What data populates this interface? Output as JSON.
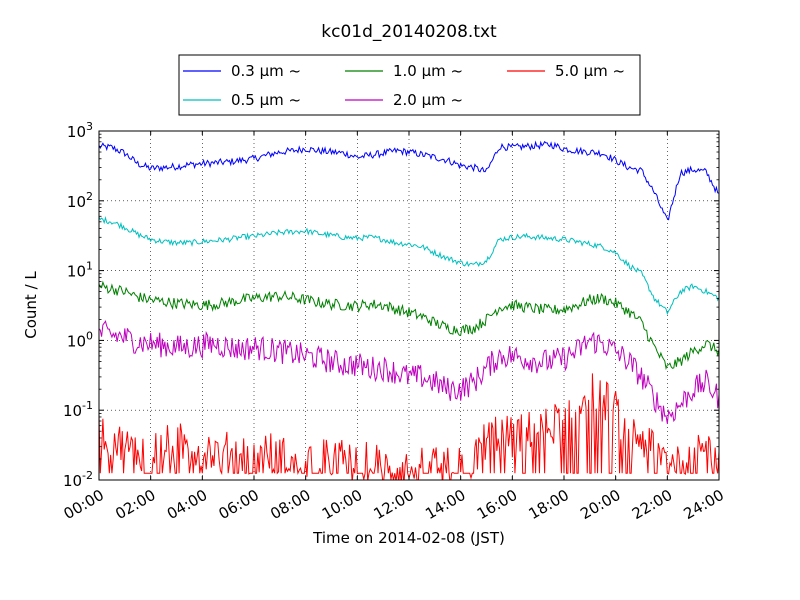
{
  "chart_data": {
    "type": "line",
    "title": "kc01d_20140208.txt",
    "xlabel": "Time on 2014-02-08 (JST)",
    "ylabel": "Count / L",
    "xlim": [
      "00:00",
      "24:00"
    ],
    "ylim": [
      0.01,
      1000
    ],
    "yscale": "log",
    "grid": true,
    "legend_position": "top-center",
    "x_ticks": [
      "00:00",
      "02:00",
      "04:00",
      "06:00",
      "08:00",
      "10:00",
      "12:00",
      "14:00",
      "16:00",
      "18:00",
      "20:00",
      "22:00",
      "24:00"
    ],
    "y_ticks": [
      {
        "value": 0.01,
        "base": "10",
        "exp": "-2"
      },
      {
        "value": 0.1,
        "base": "10",
        "exp": "-1"
      },
      {
        "value": 1,
        "base": "10",
        "exp": "0"
      },
      {
        "value": 10,
        "base": "10",
        "exp": "1"
      },
      {
        "value": 100,
        "base": "10",
        "exp": "2"
      },
      {
        "value": 1000,
        "base": "10",
        "exp": "3"
      }
    ],
    "x_hours": [
      0,
      0.5,
      1,
      1.5,
      2,
      2.5,
      3,
      3.5,
      4,
      4.5,
      5,
      5.5,
      6,
      6.5,
      7,
      7.5,
      8,
      8.5,
      9,
      9.5,
      10,
      10.5,
      11,
      11.5,
      12,
      12.5,
      13,
      13.5,
      14,
      14.5,
      15,
      15.5,
      16,
      16.5,
      17,
      17.5,
      18,
      18.5,
      19,
      19.5,
      20,
      20.5,
      21,
      21.5,
      22,
      22.5,
      23,
      23.5,
      24
    ],
    "series": [
      {
        "name": "0.3 μm ~",
        "color": "#0000ff",
        "values": [
          600,
          580,
          480,
          340,
          290,
          300,
          310,
          330,
          340,
          350,
          360,
          380,
          400,
          450,
          500,
          520,
          560,
          520,
          500,
          480,
          420,
          450,
          480,
          520,
          500,
          460,
          420,
          380,
          320,
          300,
          260,
          600,
          580,
          600,
          620,
          640,
          560,
          520,
          500,
          480,
          380,
          300,
          270,
          130,
          50,
          250,
          280,
          260,
          120
        ],
        "noise": 0.05
      },
      {
        "name": "0.5 μm ~",
        "color": "#00bfbf",
        "values": [
          55,
          50,
          42,
          33,
          28,
          26,
          25,
          25,
          26,
          27,
          28,
          30,
          31,
          33,
          35,
          36,
          37,
          34,
          32,
          30,
          29,
          30,
          28,
          25,
          24,
          22,
          18,
          15,
          13,
          12,
          14,
          28,
          30,
          31,
          30,
          29,
          28,
          26,
          24,
          22,
          18,
          12,
          9,
          4,
          2.5,
          5,
          6,
          5,
          4
        ],
        "noise": 0.04
      },
      {
        "name": "1.0 μm ~",
        "color": "#008000",
        "values": [
          6,
          5.5,
          5,
          4.2,
          3.8,
          3.6,
          3.4,
          3.3,
          3.2,
          3.3,
          3.5,
          3.8,
          4,
          4.2,
          4.3,
          4.1,
          3.8,
          3.5,
          3.3,
          3.2,
          3.1,
          3.3,
          3.2,
          2.8,
          2.5,
          2.2,
          1.8,
          1.5,
          1.4,
          1.5,
          2,
          3,
          3.2,
          3,
          2.8,
          2.7,
          2.8,
          3.2,
          3.8,
          4,
          3.4,
          2.6,
          1.8,
          0.8,
          0.4,
          0.5,
          0.7,
          0.9,
          0.7
        ],
        "noise": 0.08
      },
      {
        "name": "2.0 μm ~",
        "color": "#bf00bf",
        "values": [
          1.3,
          1.2,
          1.1,
          0.95,
          0.9,
          0.85,
          0.8,
          0.8,
          0.85,
          0.9,
          0.8,
          0.75,
          0.8,
          0.75,
          0.7,
          0.65,
          0.6,
          0.55,
          0.5,
          0.45,
          0.45,
          0.4,
          0.4,
          0.35,
          0.3,
          0.3,
          0.25,
          0.2,
          0.2,
          0.25,
          0.4,
          0.6,
          0.6,
          0.55,
          0.5,
          0.5,
          0.55,
          0.7,
          1,
          0.9,
          0.7,
          0.5,
          0.3,
          0.15,
          0.08,
          0.12,
          0.2,
          0.25,
          0.15
        ],
        "noise": 0.18
      },
      {
        "name": "5.0 μm ~",
        "color": "#ff0000",
        "values": [
          0.05,
          0.04,
          0.03,
          0.025,
          0.03,
          0.03,
          0.035,
          0.03,
          0.03,
          0.025,
          0.025,
          0.025,
          0.02,
          0.025,
          0.025,
          0.02,
          0.02,
          0.02,
          0.02,
          0.02,
          0.015,
          0.02,
          0.015,
          0.015,
          0.015,
          0.015,
          0.015,
          0.015,
          0.015,
          0.02,
          0.04,
          0.05,
          0.04,
          0.05,
          0.05,
          0.06,
          0.08,
          0.12,
          0.2,
          0.15,
          0.1,
          0.05,
          0.04,
          0.03,
          0.02,
          0.02,
          0.03,
          0.05,
          0.02
        ],
        "noise": 0.3
      }
    ]
  }
}
